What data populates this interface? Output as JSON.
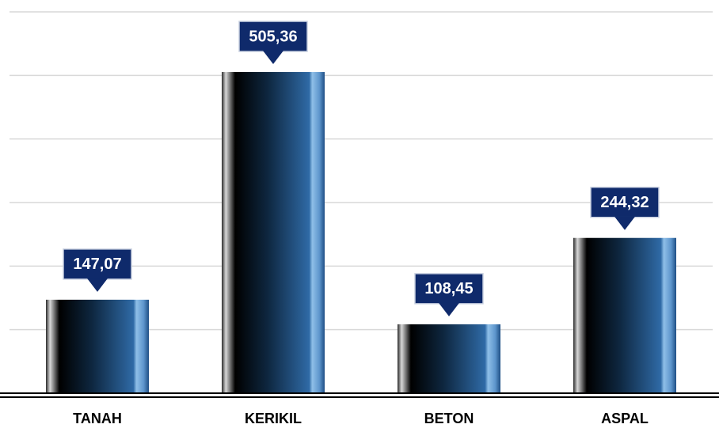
{
  "chart_data": {
    "type": "bar",
    "categories": [
      "TANAH",
      "KERIKIL",
      "BETON",
      "ASPAL"
    ],
    "values": [
      147.07,
      505.36,
      108.45,
      244.32
    ],
    "value_labels": [
      "147,07",
      "505,36",
      "108,45",
      "244,32"
    ],
    "ylim": [
      0,
      600
    ],
    "yticks": [
      0,
      100,
      200,
      300,
      400,
      500,
      600
    ],
    "grid": true
  }
}
